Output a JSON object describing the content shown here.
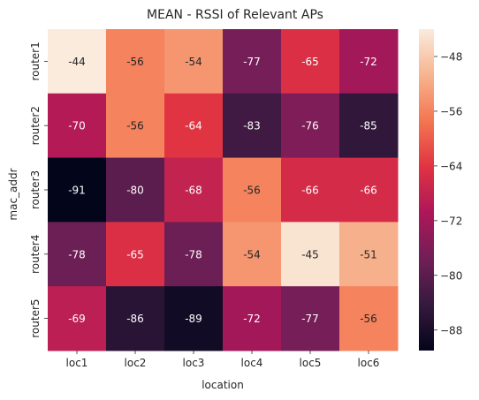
{
  "chart_data": {
    "type": "heatmap",
    "title": "MEAN - RSSI of Relevant APs",
    "xlabel": "location",
    "ylabel": "mac_addr",
    "x": [
      "loc1",
      "loc2",
      "loc3",
      "loc4",
      "loc5",
      "loc6"
    ],
    "y": [
      "router1",
      "router2",
      "router3",
      "router4",
      "router5"
    ],
    "values": [
      [
        -44,
        -56,
        -54,
        -77,
        -65,
        -72
      ],
      [
        -70,
        -56,
        -64,
        -83,
        -76,
        -85
      ],
      [
        -91,
        -80,
        -68,
        -56,
        -66,
        -66
      ],
      [
        -78,
        -65,
        -78,
        -54,
        -45,
        -51
      ],
      [
        -69,
        -86,
        -89,
        -72,
        -77,
        -56
      ]
    ],
    "value_labels": [
      [
        "-44",
        "-56",
        "-54",
        "-77",
        "-65",
        "-72"
      ],
      [
        "-70",
        "-56",
        "-64",
        "-83",
        "-76",
        "-85"
      ],
      [
        "-91",
        "-80",
        "-68",
        "-56",
        "-66",
        "-66"
      ],
      [
        "-78",
        "-65",
        "-78",
        "-54",
        "-45",
        "-51"
      ],
      [
        "-69",
        "-86",
        "-89",
        "-72",
        "-77",
        "-56"
      ]
    ],
    "colorbar": {
      "range": [
        -91,
        -44
      ],
      "ticks": [
        -48,
        -56,
        -64,
        -72,
        -80,
        -88
      ],
      "tick_labels": [
        "−48",
        "−56",
        "−64",
        "−72",
        "−80",
        "−88"
      ]
    },
    "colormap": [
      "#03051a",
      "#36193e",
      "#701f57",
      "#ad1759",
      "#e13342",
      "#f37651",
      "#f6b48f",
      "#faebdd"
    ]
  }
}
